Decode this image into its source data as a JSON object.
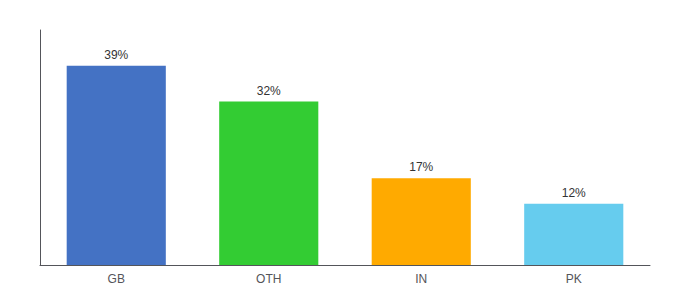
{
  "chart_data": {
    "type": "bar",
    "categories": [
      "GB",
      "OTH",
      "IN",
      "PK"
    ],
    "values": [
      39,
      32,
      17,
      12
    ],
    "value_labels": [
      "39%",
      "32%",
      "17%",
      "12%"
    ],
    "colors": [
      "#4472c4",
      "#33cc33",
      "#ffaa00",
      "#66ccee"
    ],
    "ylim": [
      0,
      46
    ],
    "grid": false,
    "data_labels": true,
    "tick_labels": "x"
  }
}
